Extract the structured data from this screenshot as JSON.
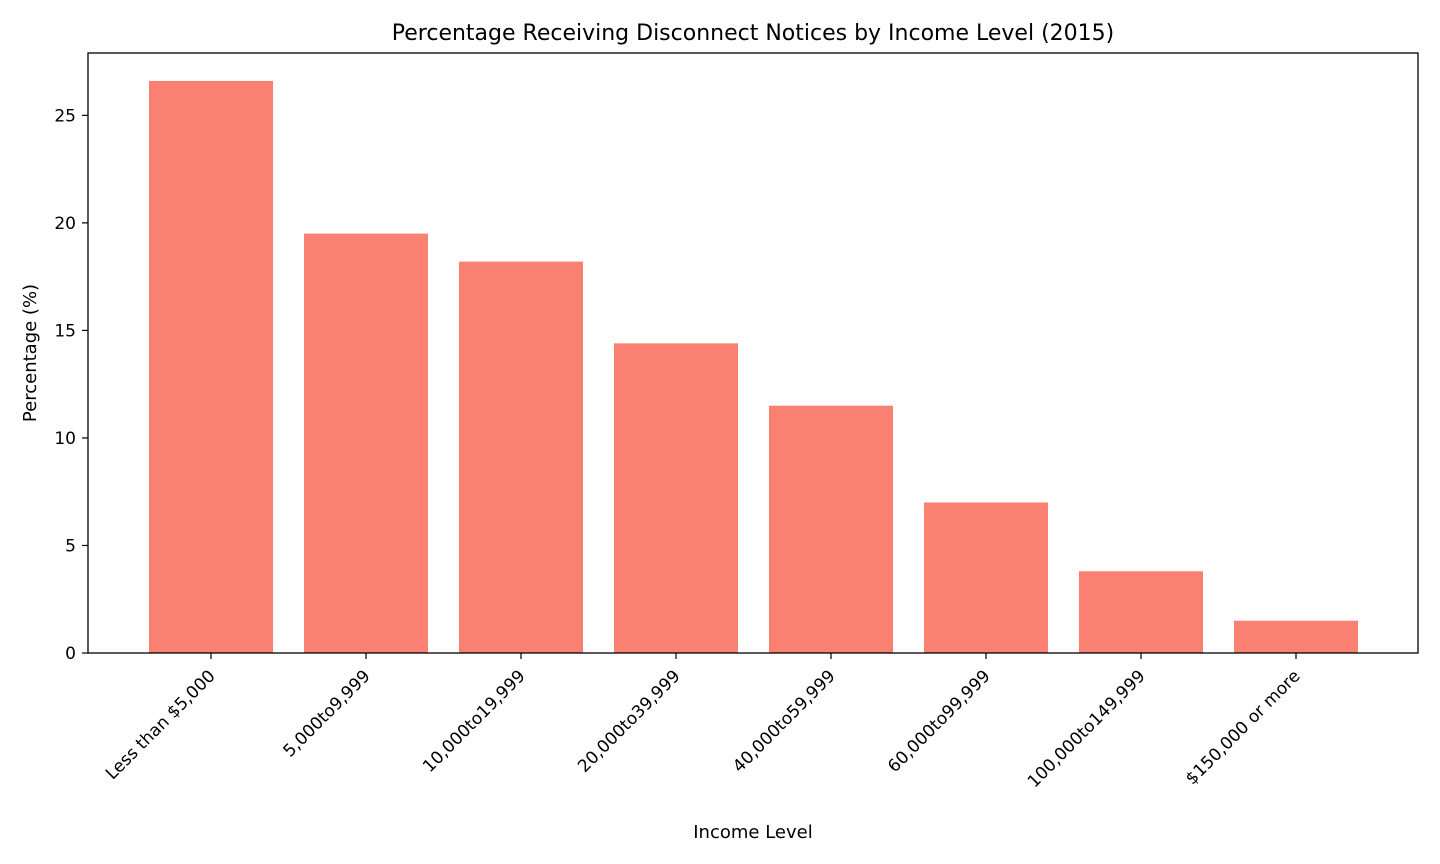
{
  "chart_data": {
    "type": "bar",
    "title": "Percentage Receiving Disconnect Notices by Income Level (2015)",
    "xlabel": "Income Level",
    "ylabel": "Percentage (%)",
    "categories": [
      "Less than $5,000",
      "5,000to9,999",
      "10,000to19,999",
      "20,000to39,999",
      "40,000to59,999",
      "60,000to99,999",
      "100,000to149,999",
      "$150,000 or more"
    ],
    "values": [
      26.6,
      19.5,
      18.2,
      14.4,
      11.5,
      7.0,
      3.8,
      1.5
    ],
    "ylim": [
      0,
      27.9
    ],
    "yticks": [
      0,
      5,
      10,
      15,
      20,
      25
    ],
    "bar_color": "#fa8072",
    "grid": false,
    "legend": "none"
  }
}
